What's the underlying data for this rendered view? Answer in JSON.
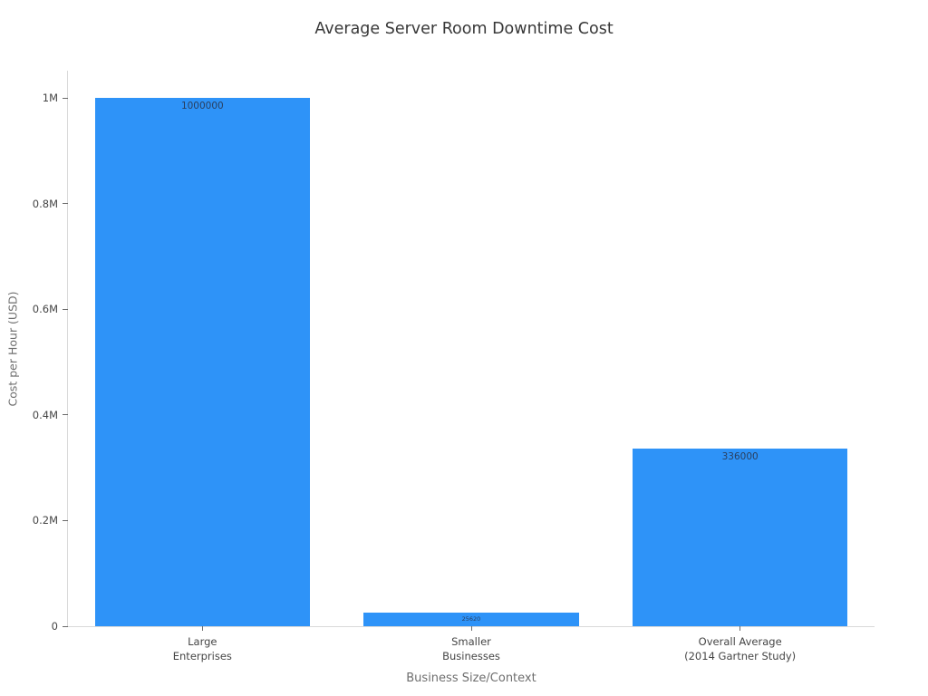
{
  "chart_data": {
    "type": "bar",
    "title": "Average Server Room Downtime Cost",
    "xlabel": "Business Size/Context",
    "ylabel": "Cost per Hour (USD)",
    "categories": [
      [
        "Large",
        "Enterprises"
      ],
      [
        "Smaller",
        "Businesses"
      ],
      [
        "Overall Average",
        "(2014 Gartner Study)"
      ]
    ],
    "values": [
      1000000,
      25620,
      336000
    ],
    "bar_labels": [
      "1000000",
      "25620",
      "336000"
    ],
    "ylim": [
      0,
      1052000
    ],
    "yticks": [
      {
        "value": 0,
        "label": "0"
      },
      {
        "value": 200000,
        "label": "0.2M"
      },
      {
        "value": 400000,
        "label": "0.4M"
      },
      {
        "value": 600000,
        "label": "0.6M"
      },
      {
        "value": 800000,
        "label": "0.8M"
      },
      {
        "value": 1000000,
        "label": "1M"
      }
    ],
    "grid": false,
    "legend": false,
    "colors": {
      "bar": "#2e93f8",
      "bar_label": "#2a3f5f"
    }
  }
}
